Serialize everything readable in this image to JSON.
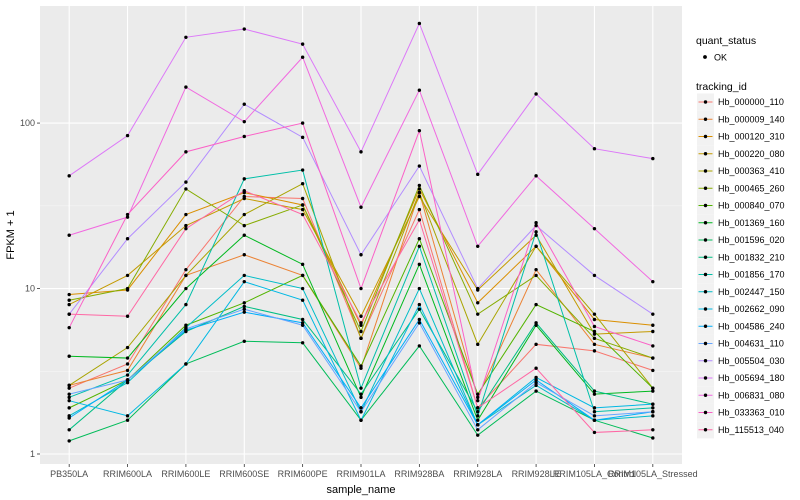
{
  "chart_data": {
    "type": "line",
    "title": "",
    "xlabel": "sample_name",
    "ylabel": "FPKM + 1",
    "y_scale": "log10",
    "ylim": [
      0.87,
      510
    ],
    "y_ticks": [
      1,
      10,
      100
    ],
    "y_tick_labels": [
      "1",
      "10",
      "100"
    ],
    "grid": true,
    "legend_position": "right",
    "categories": [
      "PB350LA",
      "RRIM600LA",
      "RRIM600LE",
      "RRIM600SE",
      "RRIM600PE",
      "RRIM901LA",
      "RRIM928BA",
      "RRIM928LA",
      "RRIM928LE",
      "RRIM105LA_Control",
      "RRIM105LA_Stressed"
    ],
    "quant_legend": {
      "title": "quant_status",
      "label": "OK"
    },
    "series_legend_title": "tracking_id",
    "series": [
      {
        "name": "Hb_000000_110",
        "color": "#F8766D",
        "values": [
          2.5,
          3.5,
          13,
          36,
          35,
          5,
          30,
          1.9,
          4.6,
          4.2,
          3.2
        ]
      },
      {
        "name": "Hb_000009_140",
        "color": "#EB8335",
        "values": [
          2.6,
          3.2,
          12,
          16,
          12,
          3.3,
          38,
          2.2,
          13,
          4.6,
          3.8
        ]
      },
      {
        "name": "Hb_000120_310",
        "color": "#DA8F00",
        "values": [
          9.2,
          9.8,
          28,
          38,
          32,
          6,
          40,
          8.2,
          18,
          6.5,
          6
        ]
      },
      {
        "name": "Hb_000220_080",
        "color": "#C49A00",
        "values": [
          8,
          12,
          24,
          35,
          30,
          6.8,
          36,
          9.8,
          21,
          5.3,
          5.5
        ]
      },
      {
        "name": "Hb_000363_410",
        "color": "#A9A400",
        "values": [
          2.6,
          4.4,
          12,
          28,
          43,
          5,
          38,
          4.6,
          18,
          7,
          2.5
        ]
      },
      {
        "name": "Hb_000465_260",
        "color": "#86AC00",
        "values": [
          8.5,
          10,
          40,
          24,
          32,
          5.5,
          42,
          7,
          12,
          5,
          3.8
        ]
      },
      {
        "name": "Hb_000840_070",
        "color": "#53B400",
        "values": [
          1.9,
          2.8,
          6,
          8.2,
          12,
          3.4,
          20,
          2.3,
          8,
          5.5,
          2.5
        ]
      },
      {
        "name": "Hb_001369_160",
        "color": "#00B81F",
        "values": [
          3.9,
          3.8,
          10,
          21,
          14,
          2.2,
          14,
          1.6,
          6,
          2.3,
          2.4
        ]
      },
      {
        "name": "Hb_001596_020",
        "color": "#00BC59",
        "values": [
          1.2,
          1.6,
          3.5,
          4.8,
          4.7,
          1.6,
          4.5,
          1.3,
          2.4,
          1.6,
          1.25
        ]
      },
      {
        "name": "Hb_001832_210",
        "color": "#00BE83",
        "values": [
          1.4,
          2.8,
          5.5,
          7.8,
          6.5,
          2.3,
          7.5,
          1.8,
          6.2,
          2.4,
          2
        ]
      },
      {
        "name": "Hb_001856_170",
        "color": "#00BFA8",
        "values": [
          2.2,
          3,
          8,
          46,
          52,
          2.5,
          18,
          1.7,
          22,
          1.8,
          1.9
        ]
      },
      {
        "name": "Hb_002447_150",
        "color": "#00BDC8",
        "values": [
          1.7,
          2.7,
          5.8,
          12,
          10,
          1.8,
          10,
          1.5,
          2.6,
          1.6,
          1.7
        ]
      },
      {
        "name": "Hb_002662_090",
        "color": "#00B8E3",
        "values": [
          2.1,
          1.7,
          3.5,
          11,
          8.5,
          1.6,
          8,
          1.5,
          2.9,
          1.9,
          2
        ]
      },
      {
        "name": "Hb_004586_240",
        "color": "#00AEFA",
        "values": [
          1.65,
          2.8,
          5.6,
          7.2,
          6.2,
          1.9,
          6.5,
          1.5,
          2.8,
          1.6,
          1.8
        ]
      },
      {
        "name": "Hb_004631_110",
        "color": "#66A5FF",
        "values": [
          2.3,
          2.8,
          5.7,
          7.5,
          6,
          1.8,
          6.2,
          1.4,
          2.7,
          1.7,
          1.8
        ]
      },
      {
        "name": "Hb_005504_030",
        "color": "#B38DFF",
        "values": [
          7,
          20,
          44,
          130,
          82,
          16,
          55,
          10,
          24,
          12,
          7
        ]
      },
      {
        "name": "Hb_005694_180",
        "color": "#DC78F8",
        "values": [
          48,
          84,
          330,
          370,
          300,
          67,
          400,
          49,
          150,
          70,
          61
        ]
      },
      {
        "name": "Hb_006831_080",
        "color": "#F169E0",
        "values": [
          21,
          27,
          165,
          102,
          250,
          31,
          158,
          18,
          48,
          23,
          11
        ]
      },
      {
        "name": "Hb_033363_010",
        "color": "#FB61C7",
        "values": [
          5.8,
          28,
          67,
          83,
          100,
          10,
          90,
          2.1,
          25,
          5.9,
          4.5
        ]
      },
      {
        "name": "Hb_115513_040",
        "color": "#FF67A4",
        "values": [
          7,
          6.8,
          23,
          39,
          28,
          6.2,
          26,
          1.9,
          3.3,
          1.35,
          1.4
        ]
      }
    ]
  }
}
